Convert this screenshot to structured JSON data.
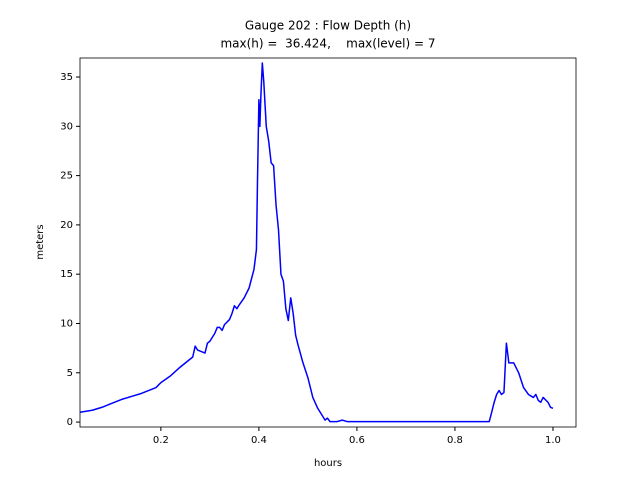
{
  "chart_data": {
    "type": "line",
    "title": "Gauge 202 : Flow Depth (h)",
    "subtitle": "max(h) =  36.424,    max(level) = 7",
    "xlabel": "hours",
    "ylabel": "meters",
    "xlim": [
      0.035,
      1.047
    ],
    "ylim": [
      -0.5,
      36.93
    ],
    "xticks": [
      0.2,
      0.4,
      0.6,
      0.8,
      {
        "value": 1,
        "label": "1.0"
      }
    ],
    "yticks": [
      0,
      5,
      10,
      15,
      20,
      25,
      30,
      35
    ],
    "grid": false,
    "x": [
      0.035,
      0.06,
      0.08,
      0.1,
      0.12,
      0.14,
      0.16,
      0.18,
      0.19,
      0.2,
      0.22,
      0.24,
      0.26,
      0.265,
      0.27,
      0.275,
      0.28,
      0.29,
      0.295,
      0.3,
      0.31,
      0.315,
      0.32,
      0.325,
      0.33,
      0.34,
      0.345,
      0.35,
      0.355,
      0.36,
      0.37,
      0.38,
      0.39,
      0.395,
      0.397,
      0.4,
      0.402,
      0.404,
      0.407,
      0.41,
      0.415,
      0.42,
      0.425,
      0.43,
      0.435,
      0.44,
      0.445,
      0.45,
      0.455,
      0.46,
      0.465,
      0.47,
      0.475,
      0.48,
      0.49,
      0.5,
      0.51,
      0.52,
      0.53,
      0.535,
      0.54,
      0.545,
      0.56,
      0.57,
      0.58,
      0.87,
      0.875,
      0.88,
      0.885,
      0.89,
      0.895,
      0.9,
      0.905,
      0.91,
      0.92,
      0.93,
      0.94,
      0.95,
      0.96,
      0.965,
      0.97,
      0.975,
      0.98,
      0.99,
      0.995,
      1.0
    ],
    "series": [
      {
        "color": "#0000ff",
        "values": [
          1.0,
          1.2,
          1.5,
          1.9,
          2.3,
          2.6,
          2.9,
          3.3,
          3.5,
          4.0,
          4.7,
          5.6,
          6.4,
          6.6,
          7.7,
          7.3,
          7.2,
          7.0,
          8.0,
          8.2,
          9.0,
          9.6,
          9.6,
          9.3,
          9.9,
          10.4,
          11.0,
          11.8,
          11.5,
          11.9,
          12.6,
          13.6,
          15.5,
          17.5,
          24.0,
          32.7,
          30.0,
          33.0,
          36.424,
          34.5,
          30.0,
          28.5,
          26.3,
          26.0,
          22.0,
          19.5,
          15.0,
          14.3,
          11.5,
          10.3,
          12.6,
          11.0,
          8.8,
          7.8,
          6.0,
          4.5,
          2.5,
          1.4,
          0.6,
          0.2,
          0.4,
          0.05,
          0.05,
          0.2,
          0.05,
          0.05,
          1.0,
          2.0,
          2.8,
          3.2,
          2.8,
          3.0,
          8.0,
          6.0,
          6.0,
          5.0,
          3.5,
          2.8,
          2.5,
          2.8,
          2.2,
          2.0,
          2.5,
          2.0,
          1.5,
          1.4
        ]
      }
    ]
  }
}
